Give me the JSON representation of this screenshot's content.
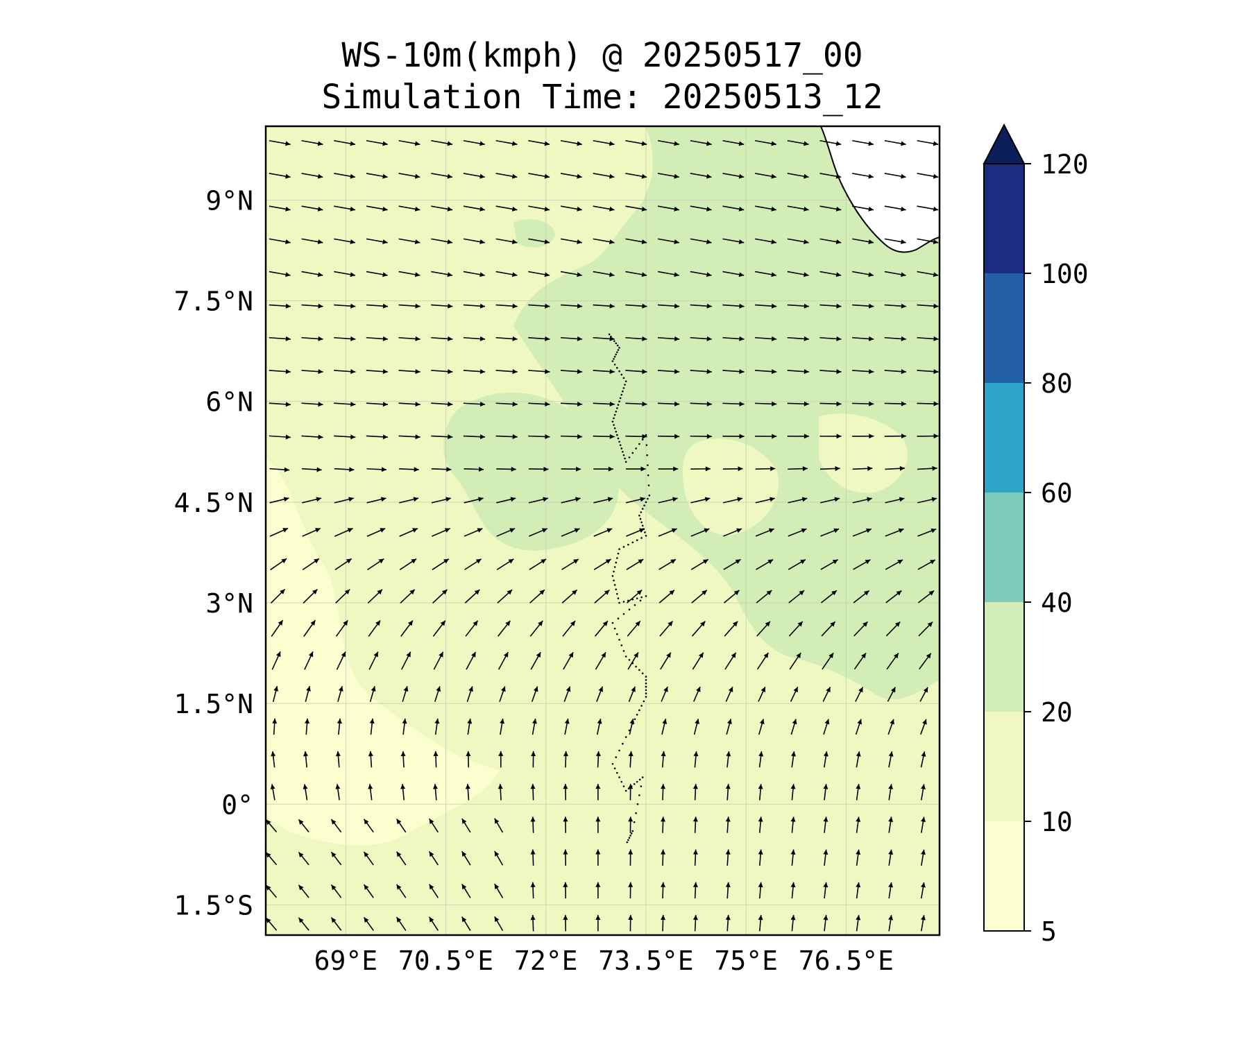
{
  "title": {
    "line1": "WS-10m(kmph) @ 20250517_00",
    "line2": "Simulation Time: 20250513_12"
  },
  "map": {
    "lon_range": [
      67.8,
      77.9
    ],
    "lat_range": [
      -1.95,
      10.1
    ],
    "lat_ticks": [
      {
        "value": 9,
        "label": "9°N"
      },
      {
        "value": 7.5,
        "label": "7.5°N"
      },
      {
        "value": 6,
        "label": "6°N"
      },
      {
        "value": 4.5,
        "label": "4.5°N"
      },
      {
        "value": 3,
        "label": "3°N"
      },
      {
        "value": 1.5,
        "label": "1.5°N"
      },
      {
        "value": 0,
        "label": "0°"
      },
      {
        "value": -1.5,
        "label": "1.5°S"
      }
    ],
    "lon_ticks": [
      {
        "value": 69,
        "label": "69°E"
      },
      {
        "value": 70.5,
        "label": "70.5°E"
      },
      {
        "value": 72,
        "label": "72°E"
      },
      {
        "value": 73.5,
        "label": "73.5°E"
      },
      {
        "value": 75,
        "label": "75°E"
      },
      {
        "value": 76.5,
        "label": "76.5°E"
      }
    ],
    "gridlines": true,
    "background_color": "#eef8c0"
  },
  "colorbar": {
    "levels": [
      5,
      10,
      20,
      40,
      60,
      80,
      100,
      120
    ],
    "tick_labels": [
      "5",
      "10",
      "20",
      "40",
      "60",
      "80",
      "100",
      "120"
    ],
    "colors": [
      "#fdfed2",
      "#eef8c0",
      "#d2edb6",
      "#7ecbbb",
      "#2ea4c8",
      "#2460a8",
      "#1c2c80",
      "#0c1f5a"
    ],
    "extend": "max"
  }
}
